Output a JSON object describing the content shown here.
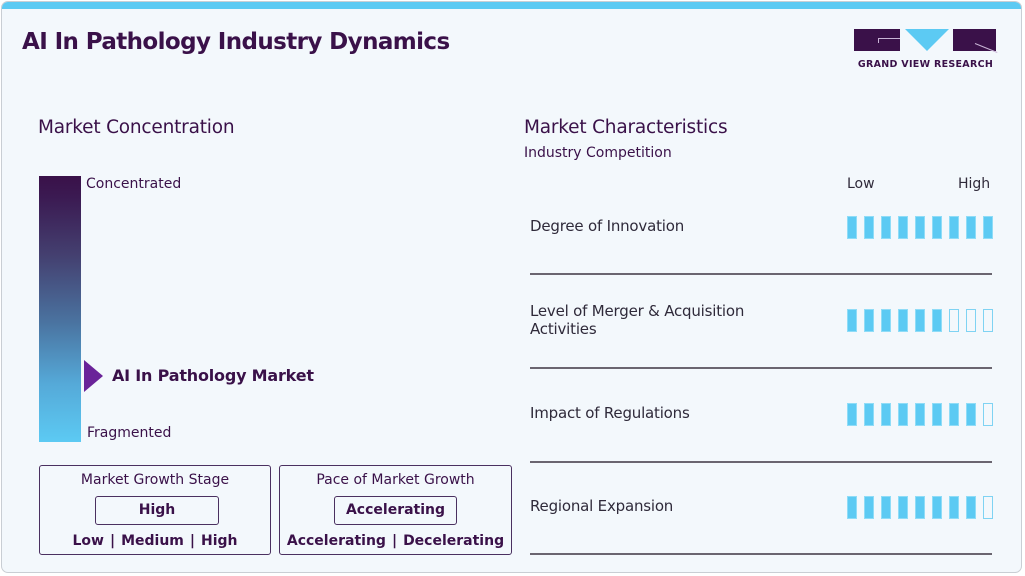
{
  "header": {
    "title": "AI In Pathology Industry Dynamics",
    "logo_text": "GRAND VIEW RESEARCH",
    "accent_color": "#5ccaf3",
    "brand_color": "#3a1149"
  },
  "market_concentration": {
    "title": "Market Concentration",
    "top_label": "Concentrated",
    "bottom_label": "Fragmented",
    "pointer_label": "AI In Pathology Market",
    "pointer_color": "#6a2399"
  },
  "growth_stage": {
    "title": "Market Growth Stage",
    "value": "High",
    "options": [
      "Low",
      "Medium",
      "High"
    ]
  },
  "growth_pace": {
    "title": "Pace of Market Growth",
    "value": "Accelerating",
    "options": [
      "Accelerating",
      "Decelerating"
    ]
  },
  "market_characteristics": {
    "title": "Market Characteristics",
    "subtitle": "Industry Competition",
    "scale_low": "Low",
    "scale_high": "High",
    "total_bars": 9,
    "rows": [
      {
        "label": "Degree of Innovation",
        "filled": 9
      },
      {
        "label": "Level of Merger & Acquisition Activities",
        "label_line1": "Level of Merger & Acquisition",
        "label_line2": "Activities",
        "filled": 6
      },
      {
        "label": "Impact of Regulations",
        "filled": 8
      },
      {
        "label": "Regional Expansion",
        "filled": 8
      }
    ]
  }
}
